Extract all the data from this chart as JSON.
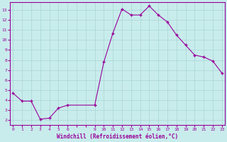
{
  "x": [
    0,
    1,
    2,
    3,
    4,
    5,
    6,
    9,
    10,
    11,
    12,
    13,
    14,
    15,
    16,
    17,
    18,
    19,
    20,
    21,
    22,
    23
  ],
  "y": [
    4.7,
    3.9,
    3.9,
    2.1,
    2.2,
    3.2,
    3.5,
    3.5,
    7.8,
    10.7,
    13.1,
    12.5,
    12.5,
    13.4,
    12.5,
    11.8,
    10.5,
    9.5,
    8.5,
    8.3,
    7.9,
    6.7
  ],
  "line_color": "#990099",
  "marker_color": "#990099",
  "bg_color": "#c8ecec",
  "grid_color": "#aad4d4",
  "axis_label_color": "#990099",
  "xlabel": "Windchill (Refroidissement éolien,°C)",
  "ylim": [
    1.5,
    13.8
  ],
  "yticks": [
    2,
    3,
    4,
    5,
    6,
    7,
    8,
    9,
    10,
    11,
    12,
    13
  ],
  "xtick_labels": [
    "0",
    "1",
    "2",
    "3",
    "4",
    "5",
    "6",
    "",
    "",
    "9",
    "10",
    "11",
    "12",
    "13",
    "14",
    "15",
    "16",
    "17",
    "18",
    "19",
    "20",
    "21",
    "22",
    "23"
  ],
  "xlim": [
    -0.3,
    23.3
  ],
  "spine_color": "#990099"
}
